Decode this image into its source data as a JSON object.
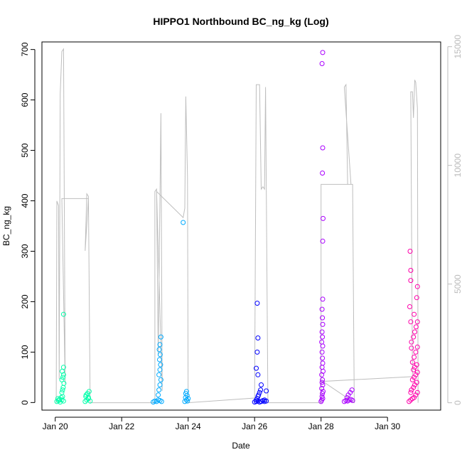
{
  "chart_data": {
    "type": "scatter",
    "title": "HIPPO1 Northbound BC_ng_kg (Log)",
    "xlabel": "Date",
    "ylabel": "BC_ng_kg",
    "x_unit": "day of January",
    "xlim": [
      19.6,
      31.6
    ],
    "ylim": [
      -15,
      715
    ],
    "y2lim": [
      -310,
      15200
    ],
    "x_ticks": [
      {
        "value": 20,
        "label": "Jan 20"
      },
      {
        "value": 22,
        "label": "Jan 22"
      },
      {
        "value": 24,
        "label": "Jan 24"
      },
      {
        "value": 26,
        "label": "Jan 26"
      },
      {
        "value": 28,
        "label": "Jan 28"
      },
      {
        "value": 30,
        "label": "Jan 30"
      }
    ],
    "y_ticks": [
      0,
      100,
      200,
      300,
      400,
      500,
      600,
      700
    ],
    "y2_ticks": [
      0,
      5000,
      10000,
      15000
    ],
    "grid": false,
    "legend": "none",
    "altitude_color": "#bebebe",
    "series": [
      {
        "color": "#00ffaa",
        "x": [
          20.05,
          20.1,
          20.15,
          20.2,
          20.25,
          20.08,
          20.12,
          20.18,
          20.22,
          20.2,
          20.22,
          20.24,
          20.26,
          20.2,
          20.23,
          20.25,
          20.21,
          20.25,
          20.9,
          20.95,
          21.0,
          21.05,
          20.92,
          20.97,
          21.02,
          20.93,
          21.0
        ],
        "y": [
          2,
          4,
          1,
          5,
          3,
          8,
          6,
          10,
          12,
          20,
          25,
          30,
          38,
          45,
          50,
          55,
          62,
          70,
          2,
          5,
          8,
          3,
          12,
          18,
          22,
          15,
          10
        ],
        "outliers": [
          {
            "x": 20.25,
            "y": 175
          }
        ]
      },
      {
        "color": "#00aaff",
        "x": [
          22.95,
          23.0,
          23.05,
          23.1,
          23.15,
          23.2,
          23.1,
          23.12,
          23.15,
          23.18,
          23.12,
          23.15,
          23.17,
          23.14,
          23.16,
          23.13,
          23.15,
          23.18,
          23.9,
          23.95,
          24.0,
          23.92,
          23.97,
          23.93,
          23.95,
          23.98
        ],
        "y": [
          1,
          3,
          2,
          5,
          4,
          2,
          15,
          25,
          35,
          45,
          55,
          65,
          75,
          85,
          95,
          105,
          115,
          130,
          2,
          5,
          8,
          10,
          14,
          18,
          22,
          3
        ],
        "outliers": [
          {
            "x": 23.85,
            "y": 357
          }
        ]
      },
      {
        "color": "#0000ff",
        "x": [
          26.0,
          26.05,
          26.1,
          26.15,
          26.2,
          26.25,
          26.3,
          26.35,
          26.05,
          26.08,
          26.1,
          26.12,
          26.15,
          26.18,
          26.2,
          26.1,
          26.05,
          26.3,
          26.35
        ],
        "y": [
          1,
          2,
          3,
          1,
          2,
          4,
          2,
          3,
          5,
          8,
          12,
          15,
          20,
          25,
          35,
          55,
          68,
          5,
          23
        ],
        "outliers": [
          {
            "x": 26.08,
            "y": 100
          },
          {
            "x": 26.1,
            "y": 128
          },
          {
            "x": 26.08,
            "y": 197
          }
        ]
      },
      {
        "color": "#aa00ff",
        "x": [
          28.0,
          28.02,
          28.05,
          28.03,
          28.04,
          28.06,
          28.02,
          28.05,
          28.03,
          28.04,
          28.02,
          28.06,
          28.03,
          28.05,
          28.04,
          28.03,
          28.05,
          28.02,
          28.04,
          28.03,
          28.05,
          28.04,
          28.03,
          28.05,
          28.7,
          28.75,
          28.8,
          28.85,
          28.9,
          28.95,
          28.78,
          28.82,
          28.88,
          28.93
        ],
        "y": [
          2,
          5,
          8,
          12,
          18,
          22,
          28,
          35,
          40,
          45,
          55,
          62,
          70,
          78,
          88,
          100,
          112,
          120,
          130,
          140,
          155,
          168,
          185,
          205,
          2,
          4,
          3,
          5,
          6,
          4,
          10,
          15,
          20,
          25
        ],
        "outliers": [
          {
            "x": 28.05,
            "y": 320
          },
          {
            "x": 28.06,
            "y": 365
          },
          {
            "x": 28.04,
            "y": 455
          },
          {
            "x": 28.05,
            "y": 505
          },
          {
            "x": 28.03,
            "y": 672
          },
          {
            "x": 28.05,
            "y": 694
          }
        ]
      },
      {
        "color": "#ff00aa",
        "x": [
          30.65,
          30.7,
          30.75,
          30.8,
          30.85,
          30.9,
          30.72,
          30.78,
          30.82,
          30.88,
          30.75,
          30.8,
          30.85,
          30.9,
          30.78,
          30.82,
          30.88,
          30.75,
          30.8,
          30.85,
          30.9,
          30.72,
          30.78,
          30.82,
          30.86,
          30.9,
          30.8,
          30.7
        ],
        "y": [
          2,
          5,
          8,
          10,
          15,
          20,
          25,
          30,
          35,
          40,
          45,
          50,
          55,
          60,
          65,
          70,
          75,
          80,
          90,
          100,
          110,
          120,
          130,
          140,
          150,
          160,
          175,
          20
        ],
        "outliers": [
          {
            "x": 30.68,
            "y": 300
          },
          {
            "x": 30.7,
            "y": 262
          },
          {
            "x": 30.7,
            "y": 242
          },
          {
            "x": 30.9,
            "y": 230
          },
          {
            "x": 30.88,
            "y": 208
          },
          {
            "x": 30.67,
            "y": 190
          },
          {
            "x": 30.7,
            "y": 160
          },
          {
            "x": 30.72,
            "y": 108
          }
        ]
      }
    ],
    "altitude": [
      {
        "x": 20.03,
        "y": 0
      },
      {
        "x": 20.05,
        "y": 8500
      },
      {
        "x": 20.1,
        "y": 8300
      },
      {
        "x": 20.12,
        "y": 1000
      },
      {
        "x": 20.15,
        "y": 13000
      },
      {
        "x": 20.2,
        "y": 14800
      },
      {
        "x": 20.25,
        "y": 14900
      },
      {
        "x": 20.3,
        "y": 800
      },
      {
        "x": 20.2,
        "y": 8600
      },
      {
        "x": 21.0,
        "y": 8600
      },
      {
        "x": 20.9,
        "y": 6400
      },
      {
        "x": 20.95,
        "y": 8800
      },
      {
        "x": 21.0,
        "y": 8700
      },
      {
        "x": 21.05,
        "y": 0
      },
      {
        "x": 21.05,
        "y": 0
      },
      {
        "x": 23.0,
        "y": 0
      },
      {
        "x": 23.0,
        "y": 8900
      },
      {
        "x": 23.05,
        "y": 9000
      },
      {
        "x": 23.1,
        "y": 2000
      },
      {
        "x": 23.18,
        "y": 12200
      },
      {
        "x": 23.22,
        "y": 500
      },
      {
        "x": 23.05,
        "y": 8900
      },
      {
        "x": 23.85,
        "y": 7800
      },
      {
        "x": 23.9,
        "y": 8200
      },
      {
        "x": 23.93,
        "y": 12900
      },
      {
        "x": 23.98,
        "y": 9500
      },
      {
        "x": 24.0,
        "y": 0
      },
      {
        "x": 24.0,
        "y": 0
      },
      {
        "x": 26.0,
        "y": 200
      },
      {
        "x": 26.05,
        "y": 13400
      },
      {
        "x": 26.15,
        "y": 13400
      },
      {
        "x": 26.2,
        "y": 9000
      },
      {
        "x": 26.25,
        "y": 9100
      },
      {
        "x": 26.3,
        "y": 9000
      },
      {
        "x": 26.33,
        "y": 13300
      },
      {
        "x": 26.4,
        "y": 0
      },
      {
        "x": 26.4,
        "y": 0
      },
      {
        "x": 28.0,
        "y": 0
      },
      {
        "x": 28.0,
        "y": 9200
      },
      {
        "x": 28.9,
        "y": 9200
      },
      {
        "x": 28.7,
        "y": 13300
      },
      {
        "x": 28.75,
        "y": 13400
      },
      {
        "x": 28.8,
        "y": 9200
      },
      {
        "x": 28.95,
        "y": 9200
      },
      {
        "x": 29.0,
        "y": 0
      },
      {
        "x": 28.05,
        "y": 900
      },
      {
        "x": 30.75,
        "y": 1100
      },
      {
        "x": 30.7,
        "y": 13100
      },
      {
        "x": 30.75,
        "y": 13100
      },
      {
        "x": 30.78,
        "y": 12000
      },
      {
        "x": 30.82,
        "y": 13600
      },
      {
        "x": 30.85,
        "y": 13500
      },
      {
        "x": 30.9,
        "y": 12400
      },
      {
        "x": 30.92,
        "y": 0
      }
    ]
  }
}
